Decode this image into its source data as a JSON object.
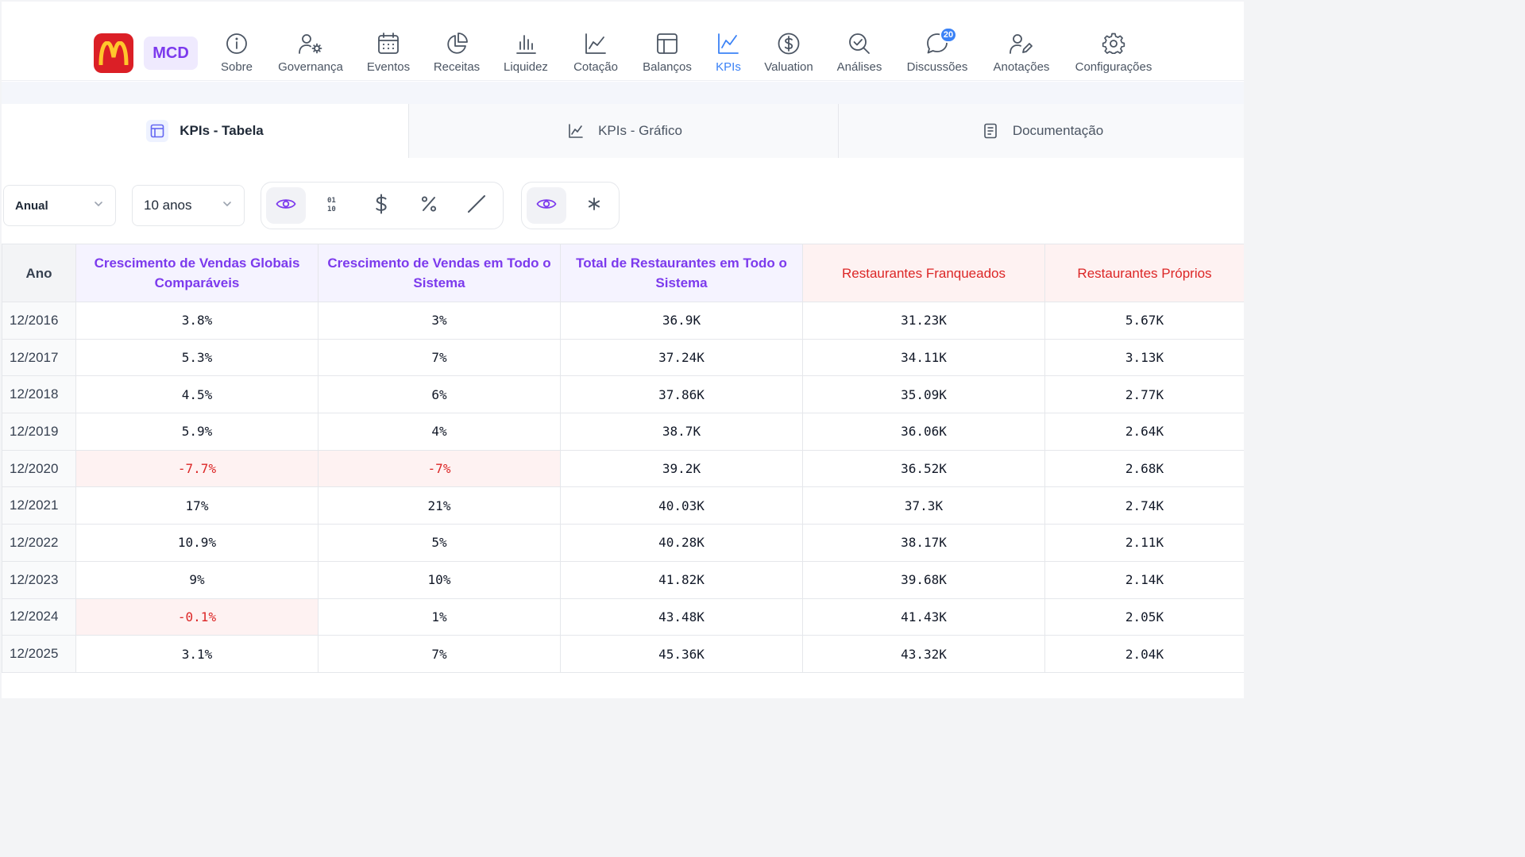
{
  "header": {
    "ticker": "MCD",
    "nav": [
      {
        "label": "Sobre",
        "icon": "info-icon"
      },
      {
        "label": "Governança",
        "icon": "user-gear-icon"
      },
      {
        "label": "Eventos",
        "icon": "calendar-icon"
      },
      {
        "label": "Receitas",
        "icon": "pie-chart-icon"
      },
      {
        "label": "Liquidez",
        "icon": "bar-chart-icon"
      },
      {
        "label": "Cotação",
        "icon": "line-chart-icon"
      },
      {
        "label": "Balanços",
        "icon": "layout-icon"
      },
      {
        "label": "KPIs",
        "icon": "kpi-chart-icon",
        "active": true
      },
      {
        "label": "Valuation",
        "icon": "dollar-circle-icon"
      },
      {
        "label": "Análises",
        "icon": "magnify-check-icon"
      },
      {
        "label": "Discussões",
        "icon": "chat-icon",
        "badge": "20"
      },
      {
        "label": "Anotações",
        "icon": "user-pen-icon"
      },
      {
        "label": "Configurações",
        "icon": "gear-icon"
      }
    ]
  },
  "tabs": [
    {
      "label": "KPIs - Tabela",
      "icon": "table-icon",
      "active": true
    },
    {
      "label": "KPIs - Gráfico",
      "icon": "line-chart-icon"
    },
    {
      "label": "Documentação",
      "icon": "document-icon"
    }
  ],
  "toolbar": {
    "period": "Anual",
    "range": "10 anos",
    "format_buttons": [
      "eye-icon",
      "binary-icon",
      "dollar-icon",
      "percent-icon",
      "slash-icon"
    ],
    "extra_buttons": [
      "eye-icon",
      "asterisk-icon"
    ]
  },
  "table": {
    "columns": [
      {
        "label": "Ano",
        "style": "year"
      },
      {
        "label": "Crescimento de Vendas Globais Comparáveis",
        "style": "purple"
      },
      {
        "label": "Crescimento de Vendas em Todo o Sistema",
        "style": "purple"
      },
      {
        "label": "Total de Restaurantes em Todo o Sistema",
        "style": "purple"
      },
      {
        "label": "Restaurantes Franqueados",
        "style": "red"
      },
      {
        "label": "Restaurantes Próprios",
        "style": "red"
      }
    ],
    "rows": [
      {
        "year": "12/2016",
        "cells": [
          "3.8%",
          "3%",
          "36.9K",
          "31.23K",
          "5.67K"
        ]
      },
      {
        "year": "12/2017",
        "cells": [
          "5.3%",
          "7%",
          "37.24K",
          "34.11K",
          "3.13K"
        ]
      },
      {
        "year": "12/2018",
        "cells": [
          "4.5%",
          "6%",
          "37.86K",
          "35.09K",
          "2.77K"
        ]
      },
      {
        "year": "12/2019",
        "cells": [
          "5.9%",
          "4%",
          "38.7K",
          "36.06K",
          "2.64K"
        ]
      },
      {
        "year": "12/2020",
        "cells": [
          "-7.7%",
          "-7%",
          "39.2K",
          "36.52K",
          "2.68K"
        ]
      },
      {
        "year": "12/2021",
        "cells": [
          "17%",
          "21%",
          "40.03K",
          "37.3K",
          "2.74K"
        ]
      },
      {
        "year": "12/2022",
        "cells": [
          "10.9%",
          "5%",
          "40.28K",
          "38.17K",
          "2.11K"
        ]
      },
      {
        "year": "12/2023",
        "cells": [
          "9%",
          "10%",
          "41.82K",
          "39.68K",
          "2.14K"
        ]
      },
      {
        "year": "12/2024",
        "cells": [
          "-0.1%",
          "1%",
          "43.48K",
          "41.43K",
          "2.05K"
        ]
      },
      {
        "year": "12/2025",
        "cells": [
          "3.1%",
          "7%",
          "45.36K",
          "43.32K",
          "2.04K"
        ]
      }
    ]
  },
  "colors": {
    "accent_purple": "#7c3aed",
    "accent_blue": "#3b82f6",
    "negative_red": "#dc2626",
    "brand_red": "#db1f26",
    "brand_yellow": "#ffc72c"
  }
}
